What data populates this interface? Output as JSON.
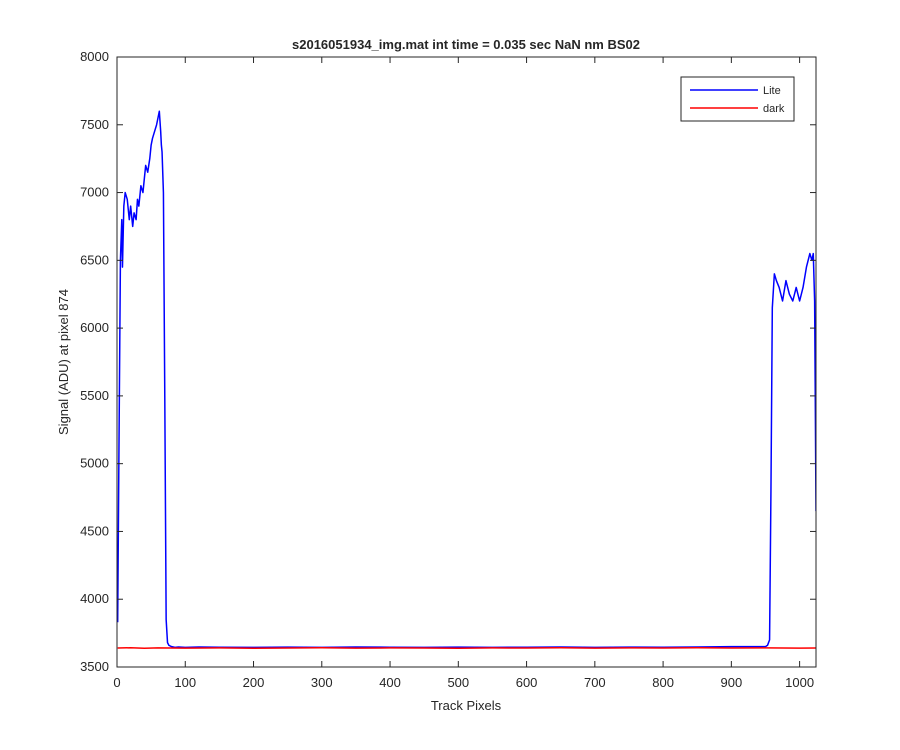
{
  "chart_data": {
    "type": "line",
    "title": "s2016051934_img.mat int time = 0.035 sec  NaN nm BS02",
    "xlabel": "Track Pixels",
    "ylabel": "Signal (ADU) at pixel 874",
    "xlim": [
      0,
      1024
    ],
    "ylim": [
      3500,
      8000
    ],
    "xticks": [
      0,
      100,
      200,
      300,
      400,
      500,
      600,
      700,
      800,
      900,
      1000
    ],
    "yticks": [
      3500,
      4000,
      4500,
      5000,
      5500,
      6000,
      6500,
      7000,
      7500,
      8000
    ],
    "grid": false,
    "legend_position": "top-right",
    "series": [
      {
        "name": "Lite",
        "color": "#0000ff",
        "x": [
          1,
          3,
          5,
          7,
          8,
          10,
          12,
          15,
          18,
          20,
          23,
          25,
          28,
          30,
          32,
          35,
          38,
          40,
          42,
          45,
          48,
          50,
          52,
          55,
          58,
          60,
          62,
          64,
          65,
          66,
          68,
          70,
          72,
          74,
          76,
          78,
          80,
          85,
          90,
          100,
          120,
          150,
          200,
          250,
          300,
          350,
          400,
          450,
          500,
          550,
          600,
          650,
          700,
          750,
          800,
          850,
          900,
          940,
          950,
          953,
          956,
          958,
          960,
          963,
          966,
          970,
          975,
          980,
          985,
          990,
          995,
          1000,
          1005,
          1010,
          1015,
          1018,
          1020,
          1022,
          1024
        ],
        "y": [
          3830,
          5200,
          6500,
          6800,
          6450,
          6900,
          7000,
          6950,
          6800,
          6900,
          6750,
          6850,
          6800,
          6950,
          6900,
          7050,
          7000,
          7100,
          7200,
          7150,
          7250,
          7350,
          7400,
          7450,
          7500,
          7550,
          7600,
          7450,
          7350,
          7300,
          7000,
          5500,
          3850,
          3680,
          3660,
          3655,
          3650,
          3645,
          3648,
          3645,
          3648,
          3646,
          3645,
          3647,
          3645,
          3648,
          3646,
          3645,
          3647,
          3645,
          3646,
          3648,
          3645,
          3647,
          3646,
          3648,
          3650,
          3650,
          3650,
          3660,
          3700,
          4800,
          6150,
          6400,
          6350,
          6300,
          6200,
          6350,
          6250,
          6200,
          6300,
          6200,
          6300,
          6450,
          6550,
          6500,
          6550,
          6200,
          4650
        ]
      },
      {
        "name": "dark",
        "color": "#ff0000",
        "x": [
          1,
          20,
          40,
          60,
          80,
          100,
          150,
          200,
          250,
          300,
          350,
          400,
          450,
          500,
          550,
          600,
          650,
          700,
          750,
          800,
          850,
          900,
          950,
          1000,
          1024
        ],
        "y": [
          3640,
          3642,
          3638,
          3641,
          3640,
          3639,
          3641,
          3638,
          3640,
          3642,
          3639,
          3641,
          3640,
          3638,
          3641,
          3640,
          3642,
          3639,
          3641,
          3640,
          3642,
          3640,
          3641,
          3639,
          3640
        ]
      }
    ]
  }
}
